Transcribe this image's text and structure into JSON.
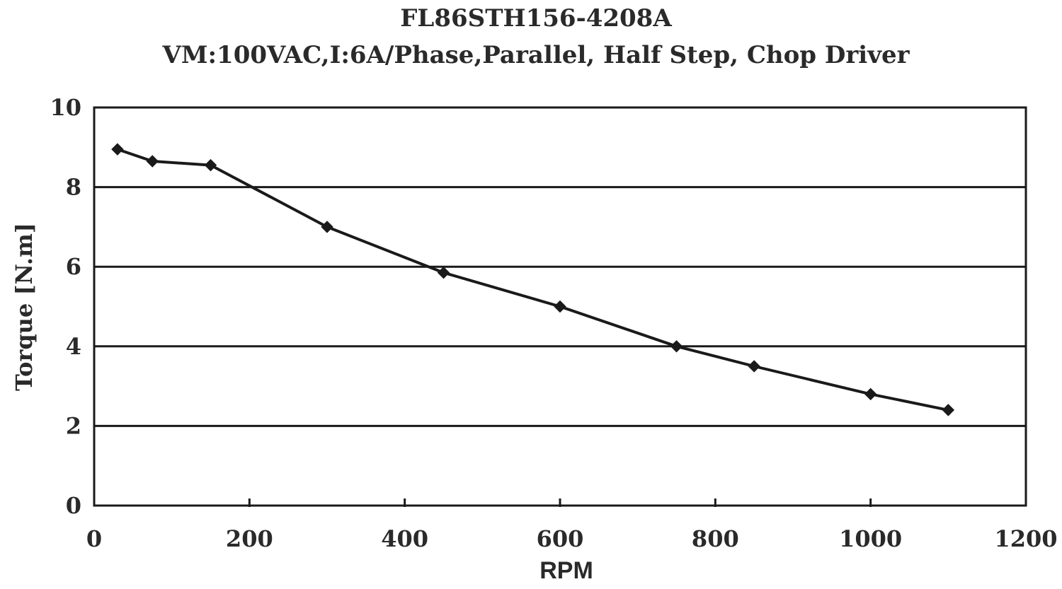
{
  "chart_data": {
    "type": "line",
    "title": "FL86STH156-4208A",
    "subtitle": "VM:100VAC,I:6A/Phase,Parallel, Half Step, Chop Driver",
    "xlabel": "RPM",
    "ylabel": "Torque [N.m]",
    "xlim": [
      0,
      1200
    ],
    "ylim": [
      0,
      10
    ],
    "x_ticks": [
      "0",
      "200",
      "400",
      "600",
      "800",
      "1000",
      "1200"
    ],
    "y_ticks": [
      "0",
      "2",
      "4",
      "6",
      "8",
      "10"
    ],
    "grid": "horizontal",
    "legend": "none",
    "series": [
      {
        "color": "#1a1a1a",
        "x": [
          30,
          75,
          150,
          300,
          450,
          600,
          750,
          850,
          1000,
          1100
        ],
        "y": [
          8.95,
          8.65,
          8.55,
          7.0,
          5.85,
          5.0,
          4.0,
          3.5,
          2.8,
          2.4
        ]
      }
    ]
  }
}
